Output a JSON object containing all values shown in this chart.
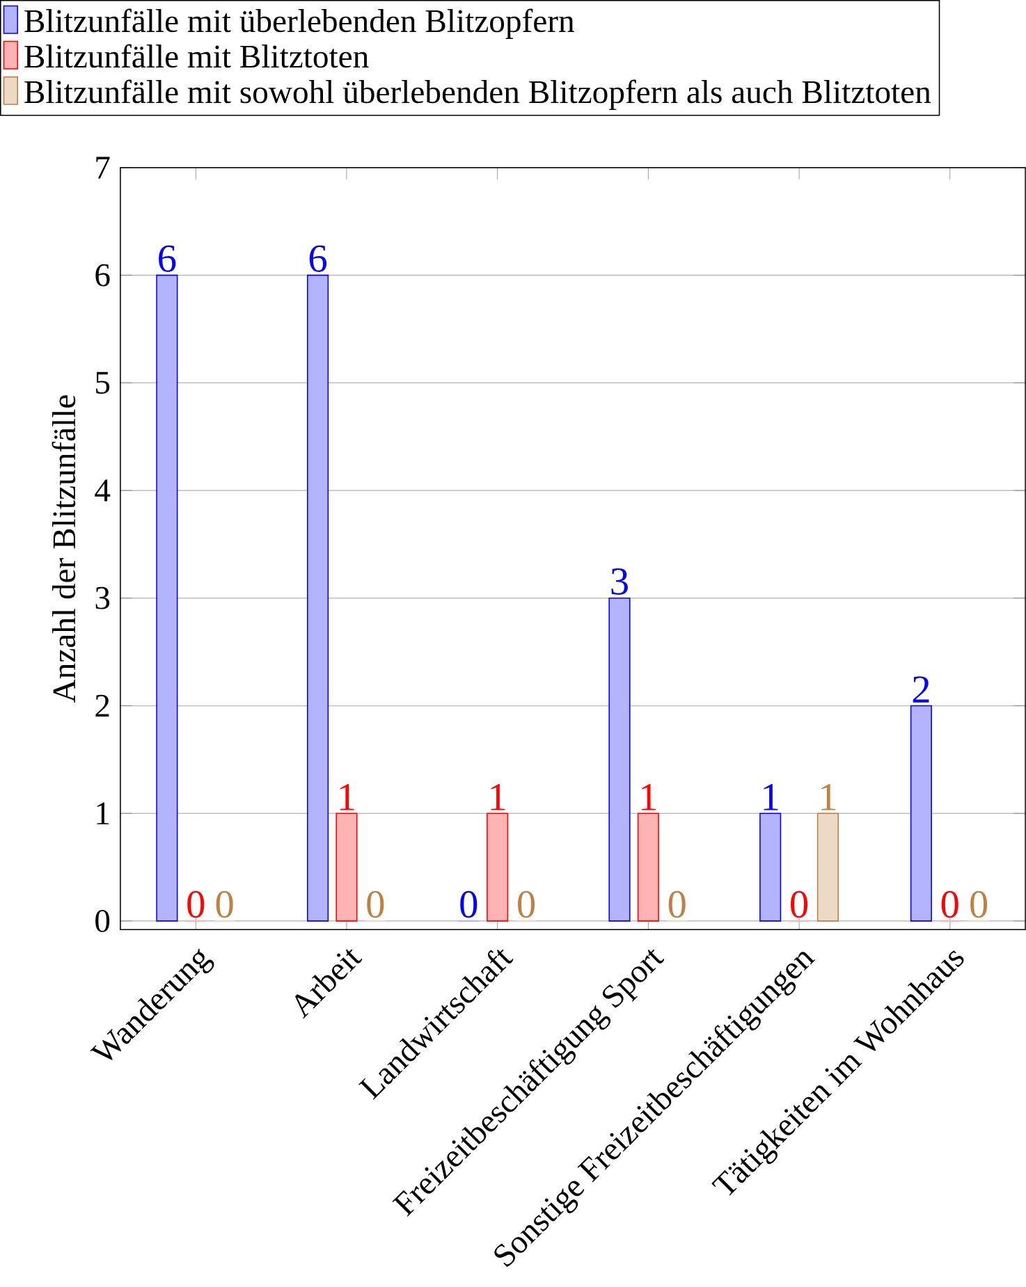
{
  "chart_data": {
    "type": "bar",
    "ylabel": "Anzahl der Blitzunfälle",
    "categories": [
      "Wanderung",
      "Arbeit",
      "Landwirtschaft",
      "Freizeitbeschäftigung Sport",
      "Sonstige Freizeitbeschäftigungen",
      "Tätigkeiten im Wohnhaus"
    ],
    "series": [
      {
        "name": "Blitzunfälle mit überlebenden Blitzopfern",
        "color": "#b3b3ff",
        "values": [
          6,
          6,
          0,
          3,
          1,
          2
        ]
      },
      {
        "name": "Blitzunfälle mit Blitztoten",
        "color": "#ffb3b3",
        "values": [
          0,
          1,
          1,
          1,
          0,
          0
        ]
      },
      {
        "name": "Blitzunfälle mit sowohl überlebenden Blitzopfern als auch Blitztoten",
        "color": "#ecd9c6",
        "values": [
          0,
          0,
          0,
          0,
          1,
          0
        ]
      }
    ],
    "ylim": [
      -0.08,
      7
    ],
    "yticks": [
      0,
      1,
      2,
      3,
      4,
      5,
      6,
      7
    ],
    "grid": "y",
    "legend": "top",
    "data_labels": true
  }
}
